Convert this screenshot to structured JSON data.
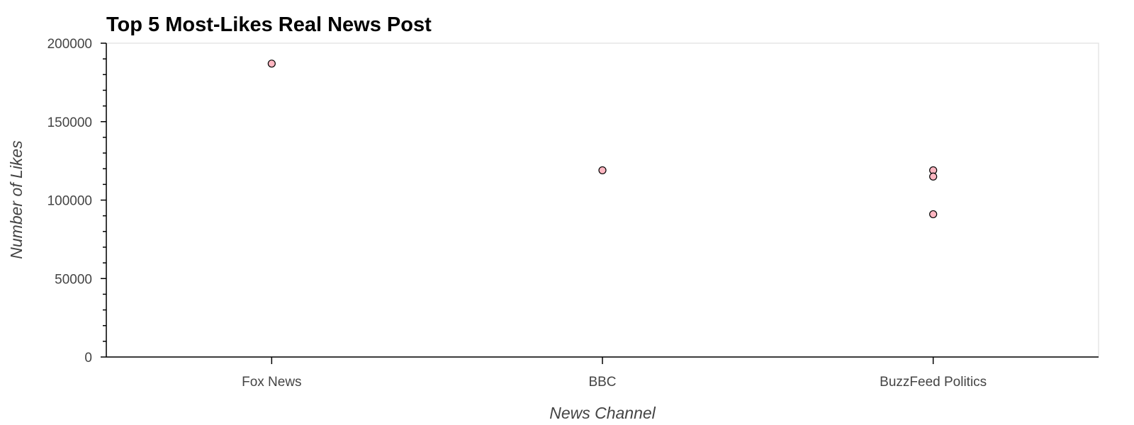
{
  "chart_data": {
    "type": "scatter",
    "title": "Top 5 Most-Likes Real News Post",
    "xlabel": "News Channel",
    "ylabel": "Number of Likes",
    "categories": [
      "Fox News",
      "BBC",
      "BuzzFeed Politics"
    ],
    "ylim": [
      0,
      200000
    ],
    "yticks": [
      "0",
      "50000",
      "100000",
      "150000",
      "200000"
    ],
    "points": [
      {
        "x": "Fox News",
        "y": 187000
      },
      {
        "x": "BBC",
        "y": 119000
      },
      {
        "x": "BuzzFeed Politics",
        "y": 119000
      },
      {
        "x": "BuzzFeed Politics",
        "y": 115000
      },
      {
        "x": "BuzzFeed Politics",
        "y": 91000
      }
    ],
    "grid": false,
    "marker_color": "#ffb6c1",
    "marker_edge_color": "#000000"
  }
}
